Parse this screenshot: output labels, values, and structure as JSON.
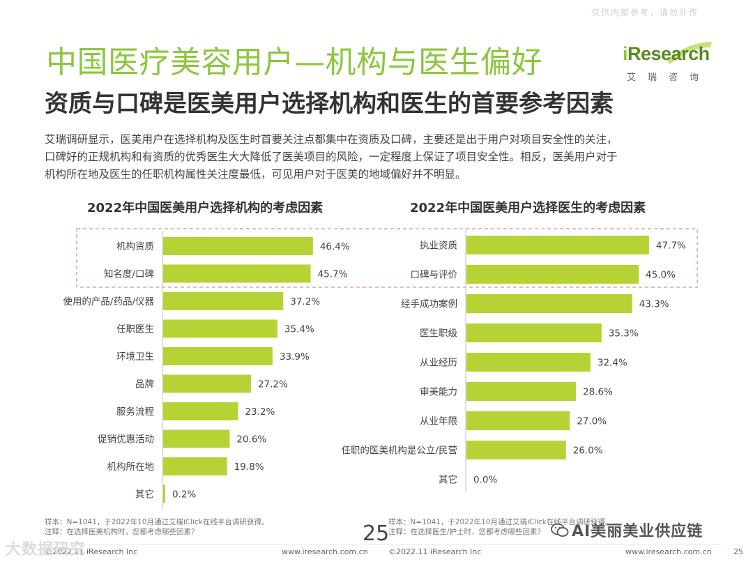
{
  "watermark_top": "仅供内部参考，请勿外传",
  "title": "中国医疗美容用户—机构与医生偏好",
  "subtitle": "资质与口碑是医美用户选择机构和医生的首要参考因素",
  "logo": {
    "text_i": "i",
    "text_rest": "Research",
    "sub": "艾瑞咨询"
  },
  "description": [
    "艾瑞调研显示，医美用户在选择机构及医生时首要关注点都集中在资质及口碑，主要还是出于用户对项目安全性的关注，",
    "口碑好的正规机构和有资质的优秀医生大大降低了医美项目的风险，一定程度上保证了项目安全性。相反，医美用户对于",
    "机构所在地及医生的任职机构属性关注度最低，可见用户对于医美的地域偏好并不明显。"
  ],
  "chart_data": [
    {
      "type": "bar",
      "orientation": "horizontal",
      "title": "2022年中国医美用户选择机构的考虑因素",
      "categories": [
        "机构资质",
        "知名度/口碑",
        "使用的产品/药品/仪器",
        "任职医生",
        "环境卫生",
        "品牌",
        "服务流程",
        "促销优惠活动",
        "机构所在地",
        "其它"
      ],
      "values": [
        46.4,
        45.7,
        37.2,
        35.4,
        33.9,
        27.2,
        23.2,
        20.6,
        19.8,
        0.2
      ],
      "value_labels": [
        "46.4%",
        "45.7%",
        "37.2%",
        "35.4%",
        "33.9%",
        "27.2%",
        "23.2%",
        "20.6%",
        "19.8%",
        "0.2%"
      ],
      "unit": "%",
      "highlighted_categories": [
        "机构资质",
        "知名度/口碑"
      ],
      "bar_color": "#b5d334"
    },
    {
      "type": "bar",
      "orientation": "horizontal",
      "title": "2022年中国医美用户选择医生的考虑因素",
      "categories": [
        "执业资质",
        "口碑与评价",
        "经手成功案例",
        "医生职级",
        "从业经历",
        "审美能力",
        "从业年限",
        "任职的医美机构是公立/民营",
        "其它"
      ],
      "values": [
        47.7,
        45.0,
        43.3,
        35.3,
        32.4,
        28.6,
        27.0,
        26.0,
        0.0
      ],
      "value_labels": [
        "47.7%",
        "45.0%",
        "43.3%",
        "35.3%",
        "32.4%",
        "28.6%",
        "27.0%",
        "26.0%",
        "0.0%"
      ],
      "unit": "%",
      "highlighted_categories": [
        "执业资质",
        "口碑与评价"
      ],
      "bar_color": "#b5d334"
    }
  ],
  "notes": {
    "left": [
      "样本：N=1041，于2022年10月通过艾瑞iClick在线平台调研获得。",
      "注释：在选择医美机构时，您都考虑哪些因素？"
    ],
    "right": [
      "样本：N=1041，于2022年10月通过艾瑞iClick在线平台调研获得。",
      "注释：在选择医生/护士时，您都考虑哪些因素？"
    ]
  },
  "page_big": "25",
  "footer": {
    "copy1": "©2022.11 iResearch Inc",
    "url1": "www.iresearch.com.cn",
    "copy2": "©2022.11 iResearch Inc",
    "url2": "www.iresearch.com.cn",
    "page": "25"
  },
  "watermarks": {
    "bottom_left": "大数据研究",
    "bottom_right": "AI美丽美业供应链"
  },
  "colors": {
    "title_green": "#8dc63f",
    "bar_green": "#b5d334",
    "highlight_dash": "#e88b8b"
  }
}
